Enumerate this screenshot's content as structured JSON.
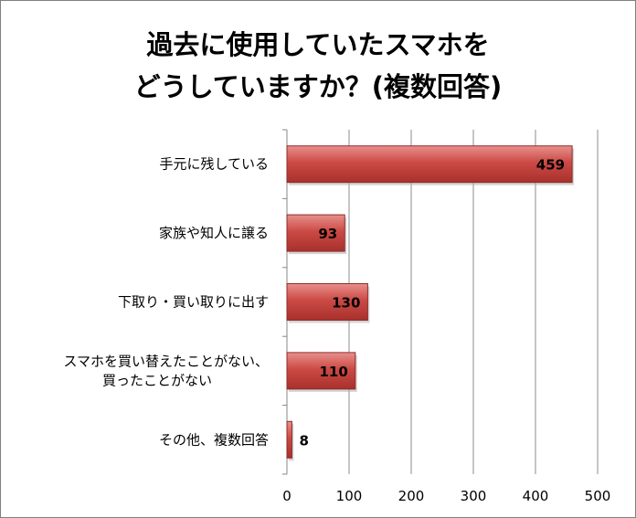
{
  "chart_data": {
    "type": "bar",
    "orientation": "horizontal",
    "title_lines": [
      "過去に使用していたスマホを",
      "どうしていますか？(複数回答)"
    ],
    "categories": [
      [
        "手元に残している"
      ],
      [
        "家族や知人に譲る"
      ],
      [
        "下取り・買い取りに出す"
      ],
      [
        "スマホを買い替えたことがない、",
        "買ったことがない"
      ],
      [
        "その他、複数回答"
      ]
    ],
    "values": [
      459,
      93,
      130,
      110,
      8
    ],
    "xlim": [
      0,
      500
    ],
    "xticks": [
      0,
      100,
      200,
      300,
      400,
      500
    ],
    "grid": true,
    "legend": "none",
    "bar_color": "#c0504d",
    "bar_edge_color": "#8c2d2a"
  }
}
